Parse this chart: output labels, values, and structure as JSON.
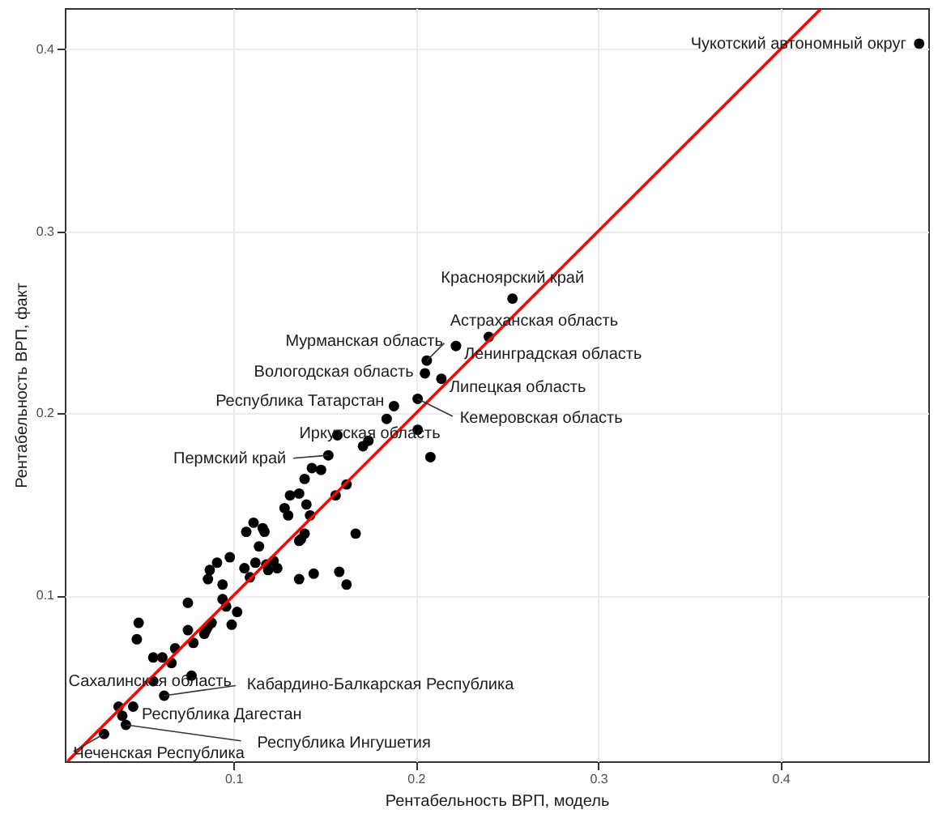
{
  "chart_data": {
    "type": "scatter",
    "xlabel": "Рентабельность ВРП, модель",
    "ylabel": "Рентабельность ВРП, факт",
    "xlim": [
      0.0075,
      0.481
    ],
    "ylim": [
      0.009,
      0.4225
    ],
    "xticks": [
      0.1,
      0.2,
      0.3,
      0.4
    ],
    "yticks": [
      0.1,
      0.2,
      0.3,
      0.4
    ],
    "grid": true,
    "series": [
      {
        "marker": "circle",
        "color": "#000000",
        "x": [
          0.476,
          0.253,
          0.24,
          0.222,
          0.206,
          0.205,
          0.214,
          0.201,
          0.188,
          0.184,
          0.201,
          0.157,
          0.174,
          0.171,
          0.208,
          0.152,
          0.143,
          0.148,
          0.139,
          0.162,
          0.156,
          0.131,
          0.136,
          0.14,
          0.128,
          0.13,
          0.142,
          0.111,
          0.107,
          0.116,
          0.117,
          0.167,
          0.139,
          0.137,
          0.136,
          0.114,
          0.098,
          0.091,
          0.087,
          0.086,
          0.094,
          0.106,
          0.112,
          0.109,
          0.118,
          0.122,
          0.119,
          0.124,
          0.136,
          0.144,
          0.158,
          0.162,
          0.094,
          0.075,
          0.096,
          0.102,
          0.048,
          0.047,
          0.075,
          0.088,
          0.086,
          0.085,
          0.084,
          0.099,
          0.078,
          0.068,
          0.061,
          0.056,
          0.066,
          0.056,
          0.077,
          0.062,
          0.037,
          0.045,
          0.039,
          0.041,
          0.029
        ],
        "values": [
          0.403,
          0.263,
          0.242,
          0.237,
          0.229,
          0.222,
          0.219,
          0.208,
          0.204,
          0.197,
          0.191,
          0.188,
          0.185,
          0.182,
          0.176,
          0.177,
          0.17,
          0.169,
          0.164,
          0.161,
          0.155,
          0.155,
          0.156,
          0.15,
          0.148,
          0.144,
          0.144,
          0.14,
          0.135,
          0.137,
          0.135,
          0.134,
          0.134,
          0.131,
          0.13,
          0.127,
          0.121,
          0.118,
          0.114,
          0.109,
          0.106,
          0.115,
          0.118,
          0.11,
          0.117,
          0.119,
          0.114,
          0.115,
          0.109,
          0.112,
          0.113,
          0.106,
          0.098,
          0.096,
          0.094,
          0.091,
          0.085,
          0.076,
          0.081,
          0.085,
          0.083,
          0.081,
          0.079,
          0.084,
          0.074,
          0.071,
          0.066,
          0.066,
          0.063,
          0.053,
          0.056,
          0.045,
          0.039,
          0.039,
          0.034,
          0.029,
          0.024
        ]
      },
      {
        "type": "line",
        "color": "#ff0000",
        "line_style": "solid",
        "x": [
          0.009,
          0.422
        ],
        "values": [
          0.009,
          0.422
        ]
      }
    ],
    "annotations": [
      {
        "text": "Чукотский автономный округ",
        "x": 0.476,
        "y": 0.403
      },
      {
        "text": "Красноярский край",
        "x": 0.253,
        "y": 0.263
      },
      {
        "text": "Астраханская область",
        "x": 0.24,
        "y": 0.242
      },
      {
        "text": "Ленинградская область",
        "x": 0.222,
        "y": 0.237
      },
      {
        "text": "Мурманская область",
        "x": 0.206,
        "y": 0.229
      },
      {
        "text": "Вологодская область",
        "x": 0.205,
        "y": 0.222
      },
      {
        "text": "Липецкая область",
        "x": 0.214,
        "y": 0.219
      },
      {
        "text": "Кемеровская область",
        "x": 0.201,
        "y": 0.208
      },
      {
        "text": "Республика Татарстан",
        "x": 0.188,
        "y": 0.204
      },
      {
        "text": "Иркутская область",
        "x": 0.157,
        "y": 0.188
      },
      {
        "text": "Пермский край",
        "x": 0.152,
        "y": 0.177
      },
      {
        "text": "Сахалинская область",
        "x": 0.056,
        "y": 0.053
      },
      {
        "text": "Кабардино-Балкарская Республика",
        "x": 0.062,
        "y": 0.045
      },
      {
        "text": "Республика Дагестан",
        "x": 0.039,
        "y": 0.034
      },
      {
        "text": "Республика Ингушетия",
        "x": 0.041,
        "y": 0.029
      },
      {
        "text": "Чеченская Республика",
        "x": 0.029,
        "y": 0.024
      }
    ]
  }
}
